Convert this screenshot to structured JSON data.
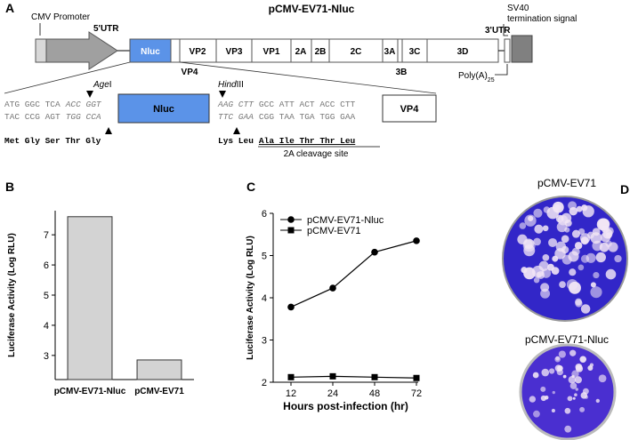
{
  "panel_labels": [
    "A",
    "B",
    "C",
    "D"
  ],
  "construct": {
    "title": "pCMV-EV71-Nluc",
    "promoter": "CMV Promoter",
    "utr5": "5'UTR",
    "utr3": "3'UTR",
    "sv40": [
      "SV40",
      "termination signal"
    ],
    "polya": {
      "text": "Poly(A)",
      "subscript": "25"
    },
    "genes": [
      "Nluc",
      "VP2",
      "VP3",
      "VP1",
      "2A",
      "2B",
      "2C",
      "3A",
      "3C",
      "3D"
    ],
    "below_labels": [
      "VP4",
      "3B"
    ]
  },
  "insert": {
    "left": {
      "top": [
        "ATG GGC TCA",
        "ACC GGT"
      ],
      "bottom": [
        "TAC CCG AGT",
        "TGG CCA"
      ],
      "aa": "Met Gly Ser Thr Gly"
    },
    "enzymes": [
      {
        "italic": "Age",
        "rest": "I"
      },
      {
        "italic": "Hind",
        "rest": "III"
      }
    ],
    "box_left": "Nluc",
    "right": {
      "top": [
        "AAG CTT",
        "GCC ATT ACT ACC CTT"
      ],
      "bottom": [
        "TTC GAA",
        "CGG TAA TGA TGG GAA"
      ],
      "aa": [
        "Lys Leu",
        "Ala Ile Thr Thr Leu"
      ]
    },
    "site": "2A cleavage site",
    "box_right": "VP4"
  },
  "chart_data": [
    {
      "type": "bar",
      "categories": [
        "pCMV-EV71-Nluc",
        "pCMV-EV71"
      ],
      "values": [
        7.6,
        2.85
      ],
      "color": "#d3d3d3",
      "y_label": "Luciferase Activity (Log RLU)",
      "ylim": [
        2.2,
        7.8
      ],
      "yticks": [
        3,
        4,
        5,
        6,
        7
      ]
    },
    {
      "type": "line",
      "categories": [
        "12",
        "24",
        "48",
        "72"
      ],
      "series": [
        {
          "name": "pCMV-EV71-Nluc",
          "color": "#000000",
          "marker": "circle",
          "values": [
            3.78,
            4.23,
            5.08,
            5.35
          ]
        },
        {
          "name": "pCMV-EV71",
          "color": "#000000",
          "marker": "square",
          "values": [
            2.12,
            2.14,
            2.12,
            2.1
          ]
        }
      ],
      "x_label": "Hours post-infection (hr)",
      "y_label": "Luciferase Activity (Log RLU)",
      "ylim": [
        2,
        6
      ],
      "yticks": [
        2,
        3,
        4,
        5,
        6
      ],
      "legend": "upper-left"
    }
  ],
  "plaques": {
    "titles": [
      "pCMV-EV71",
      "pCMV-EV71-Nluc"
    ]
  }
}
